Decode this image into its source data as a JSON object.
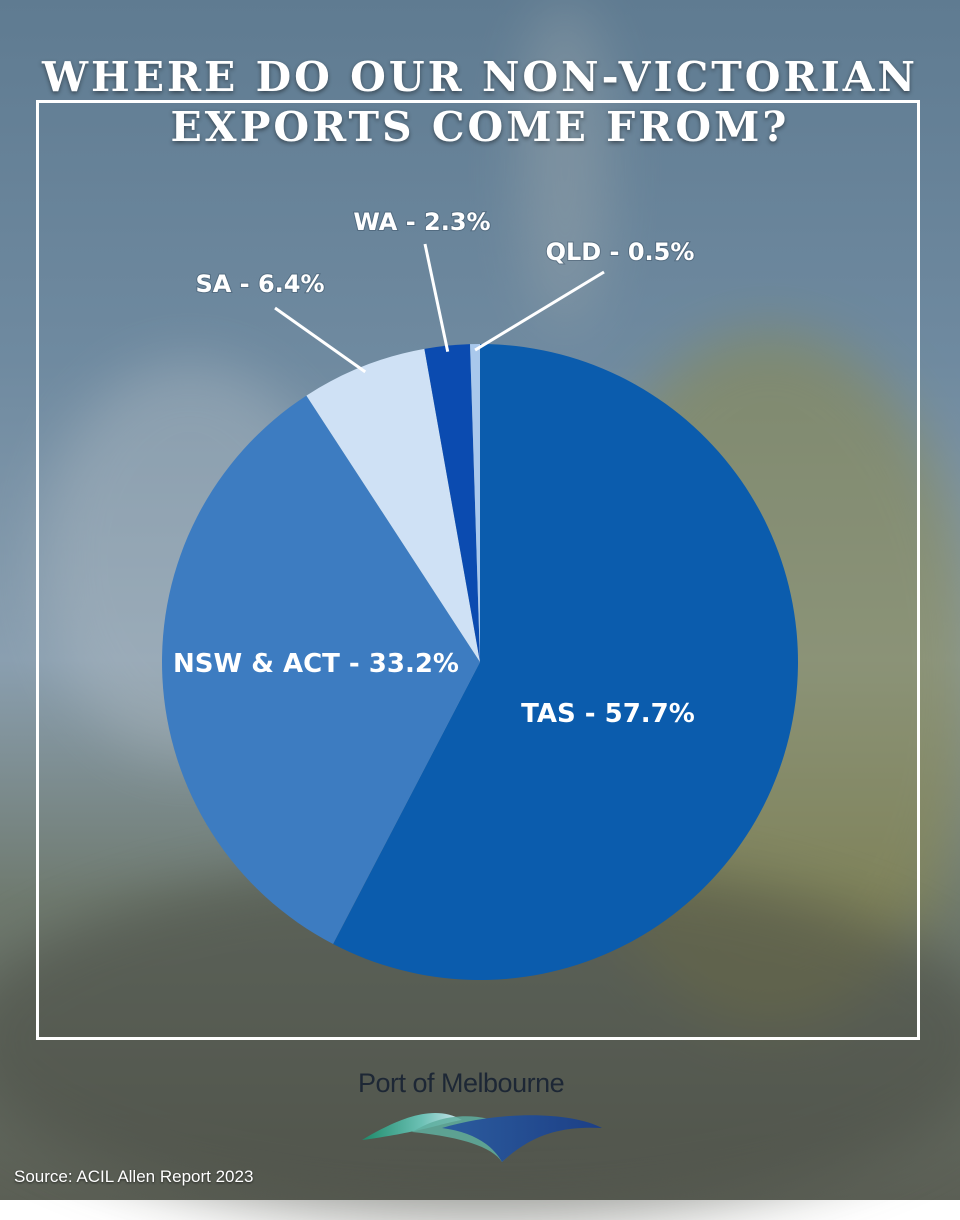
{
  "title": {
    "line1": "WHERE DO OUR NON-VICTORIAN",
    "line2": "EXPORTS COME FROM?"
  },
  "chart_data": {
    "type": "pie",
    "title": "WHERE DO OUR NON-VICTORIAN EXPORTS COME FROM?",
    "slices": [
      {
        "name": "TAS",
        "value": 57.7,
        "label": "TAS - 57.7%",
        "color": "#0b5cad"
      },
      {
        "name": "NSW & ACT",
        "value": 33.2,
        "label": "NSW & ACT - 33.2%",
        "color": "#3d7cc1"
      },
      {
        "name": "SA",
        "value": 6.4,
        "label": "SA - 6.4%",
        "color": "#cfe1f5"
      },
      {
        "name": "WA",
        "value": 2.3,
        "label": "WA - 2.3%",
        "color": "#0b4bb0"
      },
      {
        "name": "QLD",
        "value": 0.5,
        "label": "QLD - 0.5%",
        "color": "#a9c8ec"
      }
    ],
    "start": "12 o'clock",
    "direction": "clockwise"
  },
  "logo": {
    "text": "Port of Melbourne"
  },
  "source": "Source: ACIL Allen Report 2023"
}
